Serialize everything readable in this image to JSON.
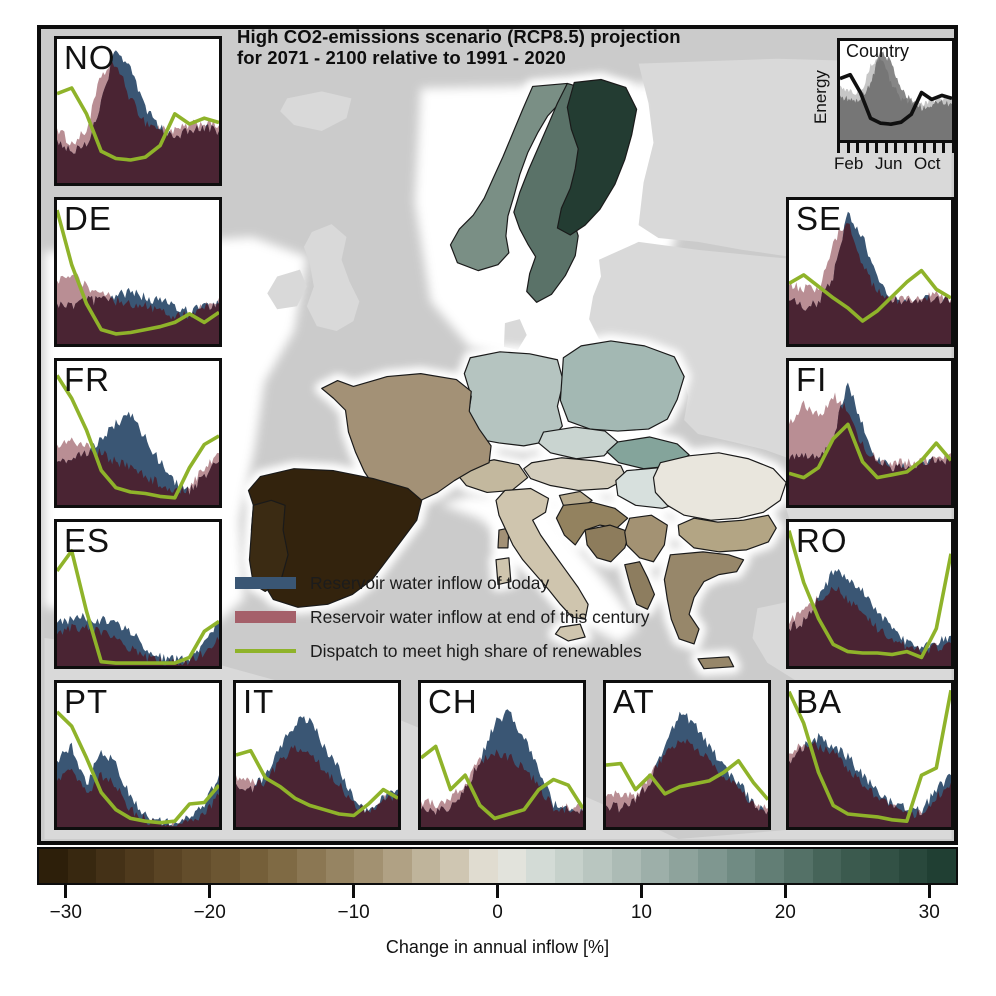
{
  "title": {
    "line1": "High CO2-emissions scenario (RCP8.5) projection",
    "line2": "for 2071 - 2100 relative to 1991 - 2020"
  },
  "legend": {
    "items": [
      {
        "key": "today",
        "label": "Reservoir water inflow of today",
        "color": "#3a5674",
        "type": "area"
      },
      {
        "key": "end_century",
        "label": "Reservoir water inflow at end of this century",
        "color": "#a5606a",
        "type": "area"
      },
      {
        "key": "dispatch",
        "label": "Dispatch to meet high share of renewables",
        "color": "#8fb32a",
        "type": "line"
      }
    ]
  },
  "mini_chart": {
    "title": "Country",
    "ylabel": "Energy",
    "xtick_labels": [
      "Feb",
      "Jun",
      "Oct"
    ],
    "colors": {
      "today": "#868686",
      "end_century": "#c6c6c6",
      "overlap": "#767676",
      "line": "#101010"
    },
    "series": {
      "end_century": [
        0.55,
        0.5,
        0.46,
        0.74,
        0.84,
        0.58,
        0.42,
        0.38,
        0.36,
        0.4,
        0.42,
        0.4
      ],
      "today": [
        0.45,
        0.4,
        0.42,
        0.55,
        0.92,
        0.78,
        0.52,
        0.4,
        0.33,
        0.36,
        0.38,
        0.36
      ],
      "dispatch": [
        0.62,
        0.66,
        0.48,
        0.22,
        0.17,
        0.16,
        0.18,
        0.26,
        0.48,
        0.41,
        0.45,
        0.42
      ]
    }
  },
  "plot_colors": {
    "today": "#3a5674",
    "end_century": "#b98e94",
    "overlap": "#4a2433",
    "dispatch": "#8fb32a"
  },
  "colorbar": {
    "label": "Change in annual inflow [%]",
    "range": [
      -32,
      32
    ],
    "n_steps": 32,
    "ticks": [
      -30,
      -20,
      -10,
      0,
      10,
      20,
      30
    ],
    "tick_labels": [
      "−30",
      "−20",
      "−10",
      "0",
      "10",
      "20",
      "30"
    ],
    "stops": [
      {
        "v": -32,
        "c": "#271a07"
      },
      {
        "v": -24,
        "c": "#553f20"
      },
      {
        "v": -16,
        "c": "#79633c"
      },
      {
        "v": -8,
        "c": "#a89878"
      },
      {
        "v": -3,
        "c": "#cfc6b2"
      },
      {
        "v": 0,
        "c": "#e9e7df"
      },
      {
        "v": 3,
        "c": "#d3dbd6"
      },
      {
        "v": 8,
        "c": "#b3c1bb"
      },
      {
        "v": 16,
        "c": "#77918a"
      },
      {
        "v": 24,
        "c": "#3f5e52"
      },
      {
        "v": 32,
        "c": "#1c3a2f"
      }
    ]
  },
  "map": {
    "sea_color": "#cbcbcb",
    "land_color": "#d9d9d9",
    "halo_color": "#ffffff",
    "border_color": "#1a1a1a",
    "countries": [
      {
        "code": "NO",
        "fill": "#7a8f85"
      },
      {
        "code": "SE",
        "fill": "#5a7268"
      },
      {
        "code": "FI",
        "fill": "#233c32"
      },
      {
        "code": "DE",
        "fill": "#b5c4c0"
      },
      {
        "code": "PL",
        "fill": "#a3b8b3"
      },
      {
        "code": "CZ",
        "fill": "#c9d4d0"
      },
      {
        "code": "SK",
        "fill": "#84a49b"
      },
      {
        "code": "HU",
        "fill": "#d7e0dd"
      },
      {
        "code": "AT",
        "fill": "#d3cdbd"
      },
      {
        "code": "CH",
        "fill": "#c3b89e"
      },
      {
        "code": "FR",
        "fill": "#a39176"
      },
      {
        "code": "ES",
        "fill": "#33230d"
      },
      {
        "code": "PT",
        "fill": "#3b2b13"
      },
      {
        "code": "IT",
        "fill": "#cfc5ae"
      },
      {
        "code": "SI",
        "fill": "#b8ab8e"
      },
      {
        "code": "HR",
        "fill": "#93825f"
      },
      {
        "code": "BA",
        "fill": "#8d7c5c"
      },
      {
        "code": "RS",
        "fill": "#a39273"
      },
      {
        "code": "AL",
        "fill": "#8d7d5f"
      },
      {
        "code": "RO",
        "fill": "#e9e6dd"
      },
      {
        "code": "BG",
        "fill": "#b3a584"
      },
      {
        "code": "GR",
        "fill": "#97876a"
      }
    ]
  },
  "chart_data": [
    {
      "code": "NO",
      "type": "area+line",
      "x_unit": "month 1-12",
      "y_unit": "relative 0-1 (axes unlabeled)",
      "series": [
        {
          "name": "Reservoir water inflow of today",
          "values": [
            0.3,
            0.22,
            0.26,
            0.55,
            0.95,
            0.78,
            0.52,
            0.38,
            0.33,
            0.36,
            0.38,
            0.36
          ]
        },
        {
          "name": "Reservoir water inflow at end of this century",
          "values": [
            0.38,
            0.27,
            0.36,
            0.75,
            0.83,
            0.58,
            0.42,
            0.38,
            0.36,
            0.4,
            0.42,
            0.4
          ]
        },
        {
          "name": "Dispatch to meet high share of renewables",
          "values": [
            0.62,
            0.66,
            0.48,
            0.22,
            0.17,
            0.16,
            0.18,
            0.26,
            0.48,
            0.41,
            0.45,
            0.42
          ]
        }
      ]
    },
    {
      "code": "DE",
      "type": "area+line",
      "x_unit": "month 1-12",
      "y_unit": "relative 0-1 (axes unlabeled)",
      "series": [
        {
          "name": "Reservoir water inflow of today",
          "values": [
            0.28,
            0.26,
            0.3,
            0.3,
            0.34,
            0.36,
            0.32,
            0.3,
            0.26,
            0.22,
            0.26,
            0.28
          ]
        },
        {
          "name": "Reservoir water inflow at end of this century",
          "values": [
            0.44,
            0.5,
            0.4,
            0.36,
            0.3,
            0.28,
            0.26,
            0.22,
            0.2,
            0.2,
            0.26,
            0.32
          ]
        },
        {
          "name": "Dispatch to meet high share of renewables",
          "values": [
            0.93,
            0.55,
            0.28,
            0.1,
            0.07,
            0.08,
            0.1,
            0.12,
            0.15,
            0.21,
            0.15,
            0.22
          ]
        }
      ]
    },
    {
      "code": "FR",
      "type": "area+line",
      "x_unit": "month 1-12",
      "y_unit": "relative 0-1 (axes unlabeled)",
      "series": [
        {
          "name": "Reservoir water inflow of today",
          "values": [
            0.3,
            0.32,
            0.36,
            0.46,
            0.56,
            0.64,
            0.46,
            0.3,
            0.16,
            0.1,
            0.2,
            0.3
          ]
        },
        {
          "name": "Reservoir water inflow at end of this century",
          "values": [
            0.42,
            0.46,
            0.4,
            0.36,
            0.3,
            0.26,
            0.2,
            0.15,
            0.1,
            0.12,
            0.26,
            0.36
          ]
        },
        {
          "name": "Dispatch to meet high share of renewables",
          "values": [
            0.9,
            0.74,
            0.52,
            0.24,
            0.12,
            0.09,
            0.08,
            0.06,
            0.05,
            0.26,
            0.42,
            0.48
          ]
        }
      ]
    },
    {
      "code": "ES",
      "type": "area+line",
      "x_unit": "month 1-12",
      "y_unit": "relative 0-1 (axes unlabeled)",
      "series": [
        {
          "name": "Reservoir water inflow of today",
          "values": [
            0.3,
            0.32,
            0.34,
            0.32,
            0.3,
            0.24,
            0.13,
            0.06,
            0.04,
            0.06,
            0.16,
            0.3
          ]
        },
        {
          "name": "Reservoir water inflow at end of this century",
          "values": [
            0.22,
            0.26,
            0.26,
            0.23,
            0.18,
            0.12,
            0.06,
            0.03,
            0.02,
            0.03,
            0.09,
            0.18
          ]
        },
        {
          "name": "Dispatch to meet high share of renewables",
          "values": [
            0.66,
            0.8,
            0.38,
            0.03,
            0.02,
            0.02,
            0.02,
            0.02,
            0.02,
            0.06,
            0.24,
            0.31
          ]
        }
      ]
    },
    {
      "code": "PT",
      "type": "area+line",
      "x_unit": "month 1-12",
      "y_unit": "relative 0-1 (axes unlabeled)",
      "series": [
        {
          "name": "Reservoir water inflow of today",
          "values": [
            0.46,
            0.56,
            0.3,
            0.52,
            0.45,
            0.2,
            0.08,
            0.04,
            0.03,
            0.06,
            0.16,
            0.36
          ]
        },
        {
          "name": "Reservoir water inflow at end of this century",
          "values": [
            0.32,
            0.42,
            0.22,
            0.36,
            0.3,
            0.12,
            0.05,
            0.02,
            0.02,
            0.03,
            0.09,
            0.22
          ]
        },
        {
          "name": "Dispatch to meet high share of renewables",
          "values": [
            0.8,
            0.7,
            0.48,
            0.24,
            0.12,
            0.06,
            0.04,
            0.03,
            0.04,
            0.16,
            0.17,
            0.29
          ]
        }
      ]
    },
    {
      "code": "IT",
      "type": "area+line",
      "x_unit": "month 1-12",
      "y_unit": "relative 0-1 (axes unlabeled)",
      "series": [
        {
          "name": "Reservoir water inflow of today",
          "values": [
            0.3,
            0.26,
            0.36,
            0.56,
            0.72,
            0.76,
            0.55,
            0.4,
            0.2,
            0.09,
            0.21,
            0.26
          ]
        },
        {
          "name": "Reservoir water inflow at end of this century",
          "values": [
            0.36,
            0.31,
            0.31,
            0.46,
            0.56,
            0.51,
            0.4,
            0.3,
            0.15,
            0.1,
            0.19,
            0.23
          ]
        },
        {
          "name": "Dispatch to meet high share of renewables",
          "values": [
            0.5,
            0.53,
            0.34,
            0.28,
            0.2,
            0.15,
            0.12,
            0.09,
            0.08,
            0.16,
            0.26,
            0.2
          ]
        }
      ]
    },
    {
      "code": "CH",
      "type": "area+line",
      "x_unit": "month 1-12",
      "y_unit": "relative 0-1 (axes unlabeled)",
      "series": [
        {
          "name": "Reservoir water inflow of today",
          "values": [
            0.12,
            0.1,
            0.15,
            0.26,
            0.46,
            0.72,
            0.8,
            0.62,
            0.4,
            0.16,
            0.13,
            0.11
          ]
        },
        {
          "name": "Reservoir water inflow at end of this century",
          "values": [
            0.18,
            0.15,
            0.2,
            0.31,
            0.46,
            0.52,
            0.49,
            0.41,
            0.28,
            0.13,
            0.13,
            0.13
          ]
        },
        {
          "name": "Dispatch to meet high share of renewables",
          "values": [
            0.48,
            0.56,
            0.26,
            0.36,
            0.15,
            0.06,
            0.09,
            0.12,
            0.26,
            0.33,
            0.29,
            0.13
          ]
        }
      ]
    },
    {
      "code": "AT",
      "type": "area+line",
      "x_unit": "month 1-12",
      "y_unit": "relative 0-1 (axes unlabeled)",
      "series": [
        {
          "name": "Reservoir water inflow of today",
          "values": [
            0.15,
            0.13,
            0.18,
            0.31,
            0.56,
            0.8,
            0.72,
            0.56,
            0.42,
            0.31,
            0.16,
            0.11
          ]
        },
        {
          "name": "Reservoir water inflow at end of this century",
          "values": [
            0.21,
            0.23,
            0.21,
            0.36,
            0.51,
            0.61,
            0.56,
            0.46,
            0.36,
            0.26,
            0.16,
            0.13
          ]
        },
        {
          "name": "Dispatch to meet high share of renewables",
          "values": [
            0.43,
            0.44,
            0.26,
            0.36,
            0.23,
            0.28,
            0.3,
            0.32,
            0.38,
            0.46,
            0.31,
            0.19
          ]
        }
      ]
    },
    {
      "code": "BA",
      "type": "area+line",
      "x_unit": "month 1-12",
      "y_unit": "relative 0-1 (axes unlabeled)",
      "series": [
        {
          "name": "Reservoir water inflow of today",
          "values": [
            0.46,
            0.56,
            0.62,
            0.56,
            0.49,
            0.36,
            0.26,
            0.16,
            0.13,
            0.11,
            0.26,
            0.36
          ]
        },
        {
          "name": "Reservoir water inflow at end of this century",
          "values": [
            0.51,
            0.59,
            0.56,
            0.51,
            0.41,
            0.31,
            0.21,
            0.13,
            0.1,
            0.09,
            0.21,
            0.31
          ]
        },
        {
          "name": "Dispatch to meet high share of renewables",
          "values": [
            0.94,
            0.72,
            0.38,
            0.15,
            0.09,
            0.08,
            0.07,
            0.05,
            0.04,
            0.36,
            0.41,
            0.95
          ]
        }
      ]
    },
    {
      "code": "SE",
      "type": "area+line",
      "x_unit": "month 1-12",
      "y_unit": "relative 0-1 (axes unlabeled)",
      "series": [
        {
          "name": "Reservoir water inflow of today",
          "values": [
            0.3,
            0.26,
            0.29,
            0.46,
            0.92,
            0.74,
            0.46,
            0.31,
            0.29,
            0.31,
            0.31,
            0.29
          ]
        },
        {
          "name": "Reservoir water inflow at end of this century",
          "values": [
            0.41,
            0.39,
            0.36,
            0.71,
            0.87,
            0.55,
            0.36,
            0.31,
            0.31,
            0.33,
            0.34,
            0.31
          ]
        },
        {
          "name": "Dispatch to meet high share of renewables",
          "values": [
            0.42,
            0.48,
            0.4,
            0.32,
            0.25,
            0.16,
            0.23,
            0.33,
            0.43,
            0.51,
            0.38,
            0.32
          ]
        }
      ]
    },
    {
      "code": "FI",
      "type": "area+line",
      "x_unit": "month 1-12",
      "y_unit": "relative 0-1 (axes unlabeled)",
      "series": [
        {
          "name": "Reservoir water inflow of today",
          "values": [
            0.31,
            0.36,
            0.31,
            0.46,
            0.86,
            0.55,
            0.31,
            0.26,
            0.26,
            0.29,
            0.31,
            0.31
          ]
        },
        {
          "name": "Reservoir water inflow at end of this century",
          "values": [
            0.56,
            0.71,
            0.61,
            0.76,
            0.66,
            0.41,
            0.31,
            0.29,
            0.29,
            0.31,
            0.33,
            0.36
          ]
        },
        {
          "name": "Dispatch to meet high share of renewables",
          "values": [
            0.22,
            0.19,
            0.26,
            0.46,
            0.56,
            0.3,
            0.19,
            0.21,
            0.23,
            0.31,
            0.43,
            0.31
          ]
        }
      ]
    },
    {
      "code": "RO",
      "type": "area+line",
      "x_unit": "month 1-12",
      "y_unit": "relative 0-1 (axes unlabeled)",
      "series": [
        {
          "name": "Reservoir water inflow of today",
          "values": [
            0.26,
            0.31,
            0.46,
            0.66,
            0.61,
            0.51,
            0.39,
            0.26,
            0.16,
            0.13,
            0.16,
            0.21
          ]
        },
        {
          "name": "Reservoir water inflow at end of this century",
          "values": [
            0.29,
            0.41,
            0.46,
            0.56,
            0.46,
            0.36,
            0.26,
            0.19,
            0.13,
            0.11,
            0.13,
            0.16
          ]
        },
        {
          "name": "Dispatch to meet high share of renewables",
          "values": [
            0.94,
            0.58,
            0.33,
            0.15,
            0.1,
            0.09,
            0.09,
            0.08,
            0.1,
            0.06,
            0.26,
            0.78
          ]
        }
      ]
    }
  ]
}
